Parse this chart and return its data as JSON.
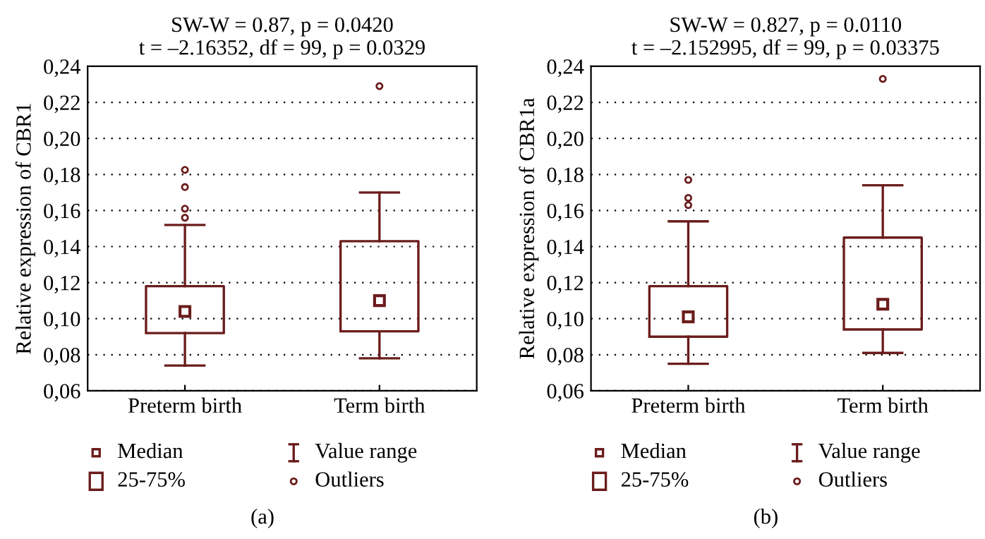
{
  "chart_data": [
    {
      "type": "box",
      "title": "SW-W = 0.87, p = 0.0420",
      "subtitle": "t = –2.16352, df = 99, p = 0.0329",
      "ylabel": "Relative expression of CBR1",
      "categories": [
        "Preterm birth",
        "Term birth"
      ],
      "color": "#6b1c1c",
      "boxes": [
        {
          "low": 0.074,
          "q1": 0.092,
          "median": 0.104,
          "q3": 0.118,
          "high": 0.152,
          "outliers": [
            0.1825,
            0.173,
            0.161,
            0.156
          ]
        },
        {
          "low": 0.078,
          "q1": 0.093,
          "median": 0.11,
          "q3": 0.143,
          "high": 0.17,
          "outliers": [
            0.229
          ]
        }
      ],
      "ylim": [
        0.06,
        0.24
      ],
      "yticks": [
        {
          "value": 0.06,
          "label": "0,06"
        },
        {
          "value": 0.08,
          "label": "0,08"
        },
        {
          "value": 0.1,
          "label": "0,10"
        },
        {
          "value": 0.12,
          "label": "0,12"
        },
        {
          "value": 0.14,
          "label": "0,14"
        },
        {
          "value": 0.16,
          "label": "0,16"
        },
        {
          "value": 0.18,
          "label": "0,18"
        },
        {
          "value": 0.2,
          "label": "0,20"
        },
        {
          "value": 0.22,
          "label": "0,22"
        },
        {
          "value": 0.24,
          "label": "0,24"
        }
      ],
      "grid": "y",
      "marker": "square",
      "annotations": [
        "Median",
        "25-75%",
        "Value range",
        "Outliers",
        "(a)"
      ]
    },
    {
      "type": "box",
      "title": "SW-W = 0.827, p = 0.0110",
      "subtitle": "t = –2.152995, df = 99, p = 0.03375",
      "ylabel": "Relative expression of CBR1a",
      "categories": [
        "Preterm birth",
        "Term birth"
      ],
      "color": "#6b1c1c",
      "boxes": [
        {
          "low": 0.075,
          "q1": 0.09,
          "median": 0.101,
          "q3": 0.118,
          "high": 0.154,
          "outliers": [
            0.177,
            0.167,
            0.163
          ]
        },
        {
          "low": 0.081,
          "q1": 0.094,
          "median": 0.108,
          "q3": 0.145,
          "high": 0.174,
          "outliers": [
            0.233
          ]
        }
      ],
      "ylim": [
        0.06,
        0.24
      ],
      "yticks": [
        {
          "value": 0.06,
          "label": "0,06"
        },
        {
          "value": 0.08,
          "label": "0,08"
        },
        {
          "value": 0.1,
          "label": "0,10"
        },
        {
          "value": 0.12,
          "label": "0,12"
        },
        {
          "value": 0.14,
          "label": "0,14"
        },
        {
          "value": 0.16,
          "label": "0,16"
        },
        {
          "value": 0.18,
          "label": "0,18"
        },
        {
          "value": 0.2,
          "label": "0,20"
        },
        {
          "value": 0.22,
          "label": "0,22"
        },
        {
          "value": 0.24,
          "label": "0,24"
        }
      ],
      "grid": "y",
      "marker": "square",
      "annotations": [
        "Median",
        "25-75%",
        "Value range",
        "Outliers",
        "(b)"
      ]
    }
  ]
}
